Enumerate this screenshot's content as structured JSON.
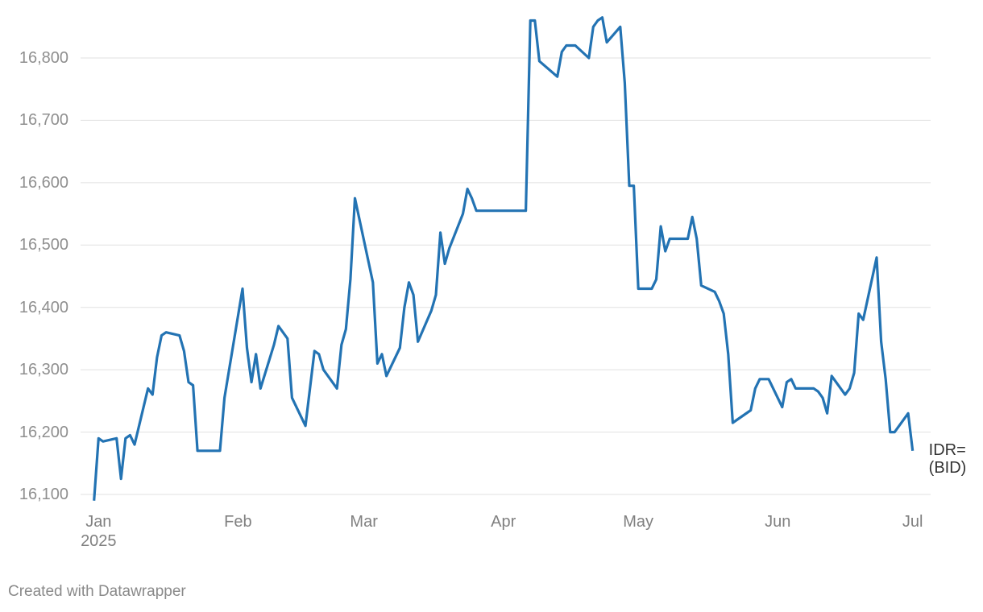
{
  "chart_data": {
    "type": "line",
    "x": [
      -1,
      0,
      1,
      4,
      5,
      6,
      7,
      8,
      11,
      12,
      13,
      14,
      15,
      18,
      19,
      20,
      21,
      22,
      27,
      28,
      32,
      33,
      34,
      35,
      36,
      39,
      40,
      42,
      43,
      46,
      48,
      49,
      50,
      53,
      54,
      55,
      56,
      57,
      61,
      62,
      63,
      64,
      67,
      68,
      69,
      70,
      71,
      74,
      75,
      76,
      77,
      78,
      81,
      82,
      83,
      84,
      95,
      96,
      97,
      98,
      102,
      103,
      104,
      106,
      109,
      110,
      111,
      112,
      113,
      116,
      117,
      118,
      119,
      120,
      123,
      124,
      125,
      126,
      127,
      131,
      132,
      133,
      134,
      137,
      138,
      139,
      140,
      141,
      145,
      146,
      147,
      149,
      152,
      153,
      154,
      155,
      159,
      160,
      161,
      162,
      163,
      166,
      167,
      168,
      169,
      170,
      173,
      174,
      175,
      176,
      177,
      180,
      181
    ],
    "series": [
      {
        "name": "IDR=\n(BID)",
        "color": "#2373b3",
        "values": [
          16090,
          16190,
          16185,
          16190,
          16125,
          16190,
          16195,
          16180,
          16270,
          16260,
          16320,
          16355,
          16360,
          16355,
          16330,
          16280,
          16275,
          16170,
          16170,
          16255,
          16430,
          16335,
          16280,
          16325,
          16270,
          16340,
          16370,
          16350,
          16255,
          16210,
          16330,
          16325,
          16300,
          16270,
          16340,
          16365,
          16445,
          16575,
          16440,
          16310,
          16325,
          16290,
          16335,
          16400,
          16440,
          16420,
          16345,
          16395,
          16420,
          16520,
          16470,
          16495,
          16550,
          16590,
          16575,
          16555,
          16555,
          16860,
          16860,
          16795,
          16770,
          16810,
          16820,
          16820,
          16800,
          16850,
          16860,
          16865,
          16825,
          16850,
          16760,
          16595,
          16595,
          16430,
          16430,
          16445,
          16530,
          16490,
          16510,
          16510,
          16545,
          16510,
          16435,
          16425,
          16410,
          16390,
          16325,
          16215,
          16235,
          16270,
          16285,
          16285,
          16240,
          16280,
          16285,
          16270,
          16270,
          16265,
          16255,
          16230,
          16290,
          16260,
          16270,
          16295,
          16390,
          16380,
          16480,
          16345,
          16285,
          16200,
          16200,
          16230,
          16170
        ]
      }
    ],
    "xlim": [
      -4,
      185
    ],
    "xticks": [
      {
        "value": 0,
        "label": "Jan\n2025"
      },
      {
        "value": 31,
        "label": "Feb"
      },
      {
        "value": 59,
        "label": "Mar"
      },
      {
        "value": 90,
        "label": "Apr"
      },
      {
        "value": 120,
        "label": "May"
      },
      {
        "value": 151,
        "label": "Jun"
      },
      {
        "value": 181,
        "label": "Jul"
      }
    ],
    "ylim": [
      16100,
      16800
    ],
    "yticks": [
      {
        "value": 16100,
        "label": "16,100"
      },
      {
        "value": 16200,
        "label": "16,200"
      },
      {
        "value": 16300,
        "label": "16,300"
      },
      {
        "value": 16400,
        "label": "16,400"
      },
      {
        "value": 16500,
        "label": "16,500"
      },
      {
        "value": 16600,
        "label": "16,600"
      },
      {
        "value": 16700,
        "label": "16,700"
      },
      {
        "value": 16800,
        "label": "16,800"
      }
    ],
    "grid": true,
    "credit": "Created with Datawrapper"
  }
}
